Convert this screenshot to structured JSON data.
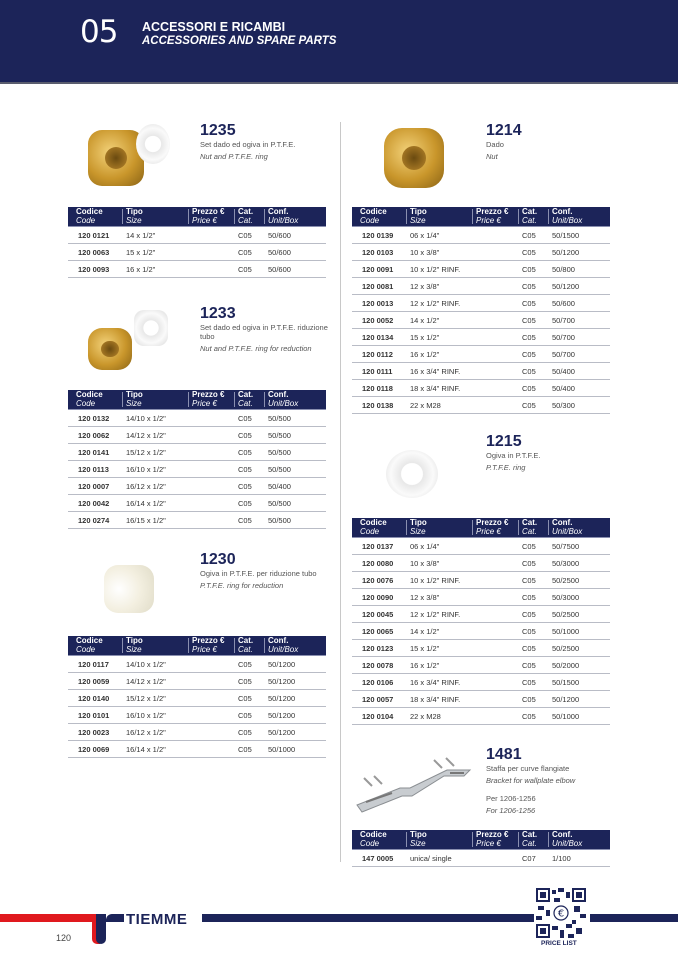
{
  "header": {
    "section_number": "05",
    "title_it": "ACCESSORI E RICAMBI",
    "title_en": "ACCESSORIES AND SPARE PARTS"
  },
  "colors": {
    "navy": "#1c2459",
    "red": "#e0191e"
  },
  "table_headers": [
    {
      "it": "Codice",
      "en": "Code"
    },
    {
      "it": "Tipo",
      "en": "Size"
    },
    {
      "it": "Prezzo €",
      "en": "Price €"
    },
    {
      "it": "Cat.",
      "en": "Cat."
    },
    {
      "it": "Conf.",
      "en": "Unit/Box"
    }
  ],
  "products": [
    {
      "code": "1235",
      "desc_it": "Set dado ed ogiva in P.T.F.E.",
      "desc_en": "Nut and P.T.F.E. ring",
      "image": "brass-nut-and-ptfe-ring",
      "rows": [
        [
          "120 0121",
          "14 x 1/2\"",
          "",
          "C05",
          "50/600"
        ],
        [
          "120 0063",
          "15 x 1/2\"",
          "",
          "C05",
          "50/600"
        ],
        [
          "120 0093",
          "16 x 1/2\"",
          "",
          "C05",
          "50/600"
        ]
      ]
    },
    {
      "code": "1233",
      "desc_it": "Set dado ed ogiva in P.T.F.E. riduzione tubo",
      "desc_en": "Nut and P.T.F.E. ring for reduction",
      "image": "brass-nut-and-reduction-ring",
      "rows": [
        [
          "120 0132",
          "14/10 x 1/2\"",
          "",
          "C05",
          "50/500"
        ],
        [
          "120 0062",
          "14/12 x 1/2\"",
          "",
          "C05",
          "50/500"
        ],
        [
          "120 0141",
          "15/12 x 1/2\"",
          "",
          "C05",
          "50/500"
        ],
        [
          "120 0113",
          "16/10 x 1/2\"",
          "",
          "C05",
          "50/500"
        ],
        [
          "120 0007",
          "16/12 x 1/2\"",
          "",
          "C05",
          "50/400"
        ],
        [
          "120 0042",
          "16/14 x 1/2\"",
          "",
          "C05",
          "50/500"
        ],
        [
          "120 0274",
          "16/15 x 1/2\"",
          "",
          "C05",
          "50/500"
        ]
      ]
    },
    {
      "code": "1230",
      "desc_it": "Ogiva in P.T.F.E. per riduzione tubo",
      "desc_en": "P.T.F.E. ring for reduction",
      "image": "ptfe-reduction-ring",
      "rows": [
        [
          "120 0117",
          "14/10 x 1/2\"",
          "",
          "C05",
          "50/1200"
        ],
        [
          "120 0059",
          "14/12 x 1/2\"",
          "",
          "C05",
          "50/1200"
        ],
        [
          "120 0140",
          "15/12 x 1/2\"",
          "",
          "C05",
          "50/1200"
        ],
        [
          "120 0101",
          "16/10 x 1/2\"",
          "",
          "C05",
          "50/1200"
        ],
        [
          "120 0023",
          "16/12 x 1/2\"",
          "",
          "C05",
          "50/1200"
        ],
        [
          "120 0069",
          "16/14 x 1/2\"",
          "",
          "C05",
          "50/1000"
        ]
      ]
    },
    {
      "code": "1214",
      "desc_it": "Dado",
      "desc_en": "Nut",
      "image": "brass-nut",
      "rows": [
        [
          "120 0139",
          "06 x 1/4\"",
          "",
          "C05",
          "50/1500"
        ],
        [
          "120 0103",
          "10 x 3/8\"",
          "",
          "C05",
          "50/1200"
        ],
        [
          "120 0091",
          "10 x 1/2\" RINF.",
          "",
          "C05",
          "50/800"
        ],
        [
          "120 0081",
          "12 x 3/8\"",
          "",
          "C05",
          "50/1200"
        ],
        [
          "120 0013",
          "12 x 1/2\" RINF.",
          "",
          "C05",
          "50/600"
        ],
        [
          "120 0052",
          "14 x 1/2\"",
          "",
          "C05",
          "50/700"
        ],
        [
          "120 0134",
          "15 x 1/2\"",
          "",
          "C05",
          "50/700"
        ],
        [
          "120 0112",
          "16 x 1/2\"",
          "",
          "C05",
          "50/700"
        ],
        [
          "120 0111",
          "16 x 3/4\" RINF.",
          "",
          "C05",
          "50/400"
        ],
        [
          "120 0118",
          "18 x 3/4\" RINF.",
          "",
          "C05",
          "50/400"
        ],
        [
          "120 0138",
          "22 x M28",
          "",
          "C05",
          "50/300"
        ]
      ]
    },
    {
      "code": "1215",
      "desc_it": "Ogiva in P.T.F.E.",
      "desc_en": "P.T.F.E. ring",
      "image": "ptfe-ring",
      "rows": [
        [
          "120 0137",
          "06 x 1/4\"",
          "",
          "C05",
          "50/7500"
        ],
        [
          "120 0080",
          "10 x 3/8\"",
          "",
          "C05",
          "50/3000"
        ],
        [
          "120 0076",
          "10 x 1/2\" RINF.",
          "",
          "C05",
          "50/2500"
        ],
        [
          "120 0090",
          "12 x 3/8\"",
          "",
          "C05",
          "50/3000"
        ],
        [
          "120 0045",
          "12 x 1/2\" RINF.",
          "",
          "C05",
          "50/2500"
        ],
        [
          "120 0065",
          "14 x 1/2\"",
          "",
          "C05",
          "50/1000"
        ],
        [
          "120 0123",
          "15 x 1/2\"",
          "",
          "C05",
          "50/2500"
        ],
        [
          "120 0078",
          "16 x 1/2\"",
          "",
          "C05",
          "50/2000"
        ],
        [
          "120 0106",
          "16 x 3/4\" RINF.",
          "",
          "C05",
          "50/1500"
        ],
        [
          "120 0057",
          "18 x 3/4\" RINF.",
          "",
          "C05",
          "50/1200"
        ],
        [
          "120 0104",
          "22 x M28",
          "",
          "C05",
          "50/1000"
        ]
      ]
    },
    {
      "code": "1481",
      "desc_it": "Staffa per curve flangiate",
      "desc_en": "Bracket for wallplate elbow",
      "note_it": "Per 1206-1256",
      "note_en": "For 1206-1256",
      "image": "wall-bracket",
      "rows": [
        [
          "147 0005",
          "unica/ single",
          "",
          "C07",
          "1/100"
        ]
      ]
    }
  ],
  "footer": {
    "brand": "TIEMME",
    "page_number": "120",
    "qr_label": "PRICE LIST"
  }
}
